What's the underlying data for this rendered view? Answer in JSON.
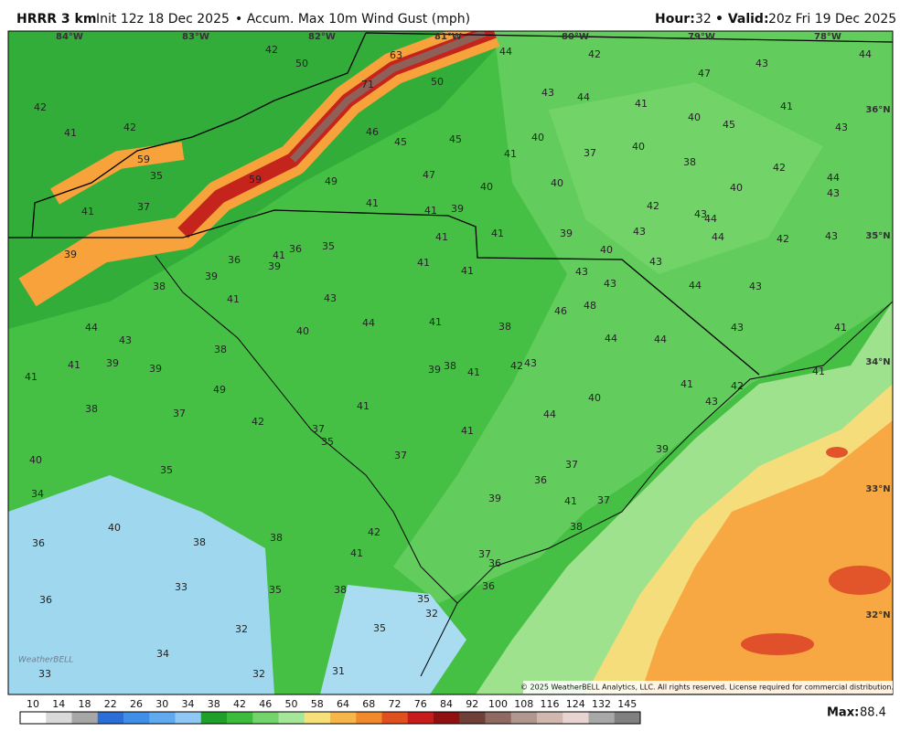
{
  "header": {
    "model": "HRRR 3 km",
    "init": "Init 12z 18 Dec 2025",
    "field": "• Accum. Max 10m Wind Gust (mph)",
    "hour_label": "Hour:",
    "hour": "32",
    "valid_label": "• Valid:",
    "valid": "20z Fri 19 Dec 2025"
  },
  "map": {
    "lon_labels": [
      "84°W",
      "83°W",
      "82°W",
      "81°W",
      "80°W",
      "79°W",
      "78°W"
    ],
    "lat_labels": [
      "36°N",
      "35°N",
      "34°N",
      "33°N",
      "32°N"
    ],
    "labels": [
      "42",
      "50",
      "63",
      "71",
      "50",
      "44",
      "42",
      "47",
      "43",
      "44",
      "42",
      "42",
      "41",
      "43",
      "44",
      "41",
      "40",
      "45",
      "41",
      "43",
      "46",
      "45",
      "45",
      "59",
      "35",
      "59",
      "49",
      "47",
      "41",
      "40",
      "37",
      "40",
      "38",
      "42",
      "44",
      "43",
      "40",
      "40",
      "40",
      "41",
      "37",
      "41",
      "41",
      "39",
      "42",
      "43",
      "44",
      "41",
      "41",
      "39",
      "43",
      "44",
      "42",
      "43",
      "39",
      "36",
      "35",
      "41",
      "36",
      "39",
      "41",
      "41",
      "40",
      "43",
      "43",
      "39",
      "38",
      "43",
      "44",
      "43",
      "41",
      "43",
      "48",
      "46",
      "44",
      "44",
      "41",
      "38",
      "40",
      "43",
      "44",
      "44",
      "43",
      "41",
      "38",
      "41",
      "39",
      "39",
      "39",
      "38",
      "41",
      "42",
      "43",
      "41",
      "41",
      "49",
      "41",
      "42",
      "40",
      "43",
      "41",
      "38",
      "37",
      "42",
      "44",
      "37",
      "41",
      "35",
      "39",
      "37",
      "40",
      "35",
      "37",
      "36",
      "34",
      "39",
      "41",
      "37",
      "40",
      "38",
      "42",
      "38",
      "38",
      "36",
      "41",
      "37",
      "36",
      "36",
      "33",
      "35",
      "38",
      "36",
      "35",
      "32",
      "32",
      "35",
      "34",
      "33",
      "31",
      "32"
    ],
    "copyright": "© 2025 WeatherBELL Analytics, LLC. All rights reserved. License required for commercial distribution.",
    "logo": "WeatherBELL"
  },
  "legend": {
    "ticks": [
      "10",
      "14",
      "18",
      "22",
      "26",
      "30",
      "34",
      "38",
      "42",
      "46",
      "50",
      "58",
      "64",
      "68",
      "72",
      "76",
      "84",
      "92",
      "100",
      "108",
      "116",
      "124",
      "132",
      "145"
    ],
    "colors": [
      "#ffffff",
      "#d9d9d9",
      "#a6a6a6",
      "#2b6fd6",
      "#3f8fe8",
      "#62aaf0",
      "#8fc8f5",
      "#1fa02a",
      "#3cbc3c",
      "#72d46a",
      "#a6e69a",
      "#f7e07a",
      "#f7b64a",
      "#f08a2a",
      "#e0501e",
      "#c61c1c",
      "#8e1010",
      "#6e4038",
      "#8e6a62",
      "#b09890",
      "#d0b8b0",
      "#e8d4d0",
      "#a8a8a8",
      "#808080"
    ],
    "max_label": "Max:",
    "max": "88.4"
  }
}
